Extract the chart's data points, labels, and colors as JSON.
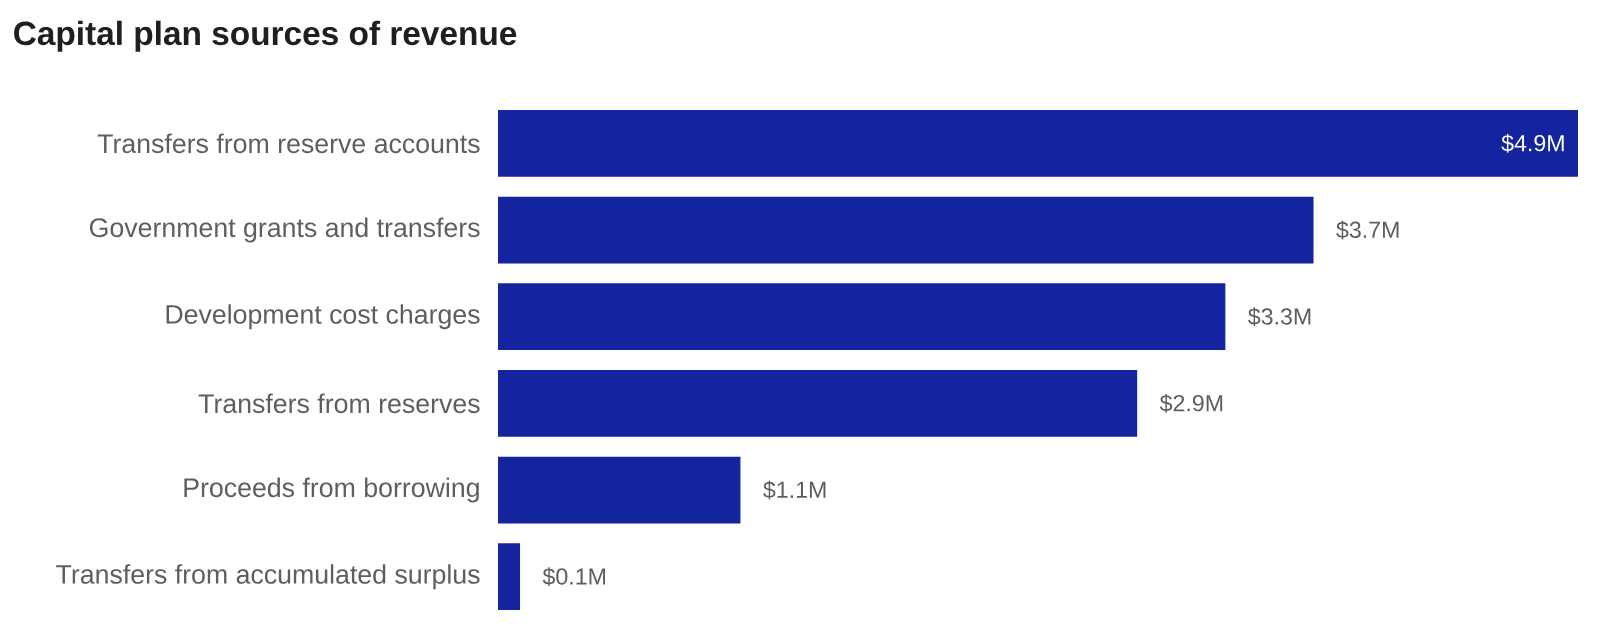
{
  "chart_data": {
    "type": "bar",
    "orientation": "horizontal",
    "title": "Capital plan sources of revenue",
    "categories": [
      "Transfers from reserve accounts",
      "Government grants and transfers",
      "Development cost charges",
      "Transfers from reserves",
      "Proceeds from borrowing",
      "Transfers from accumulated surplus"
    ],
    "values": [
      4.9,
      3.7,
      3.3,
      2.9,
      1.1,
      0.1
    ],
    "value_labels": [
      "$4.9M",
      "$3.7M",
      "$3.3M",
      "$2.9M",
      "$1.1M",
      "$0.1M"
    ],
    "color": "#14239e"
  }
}
